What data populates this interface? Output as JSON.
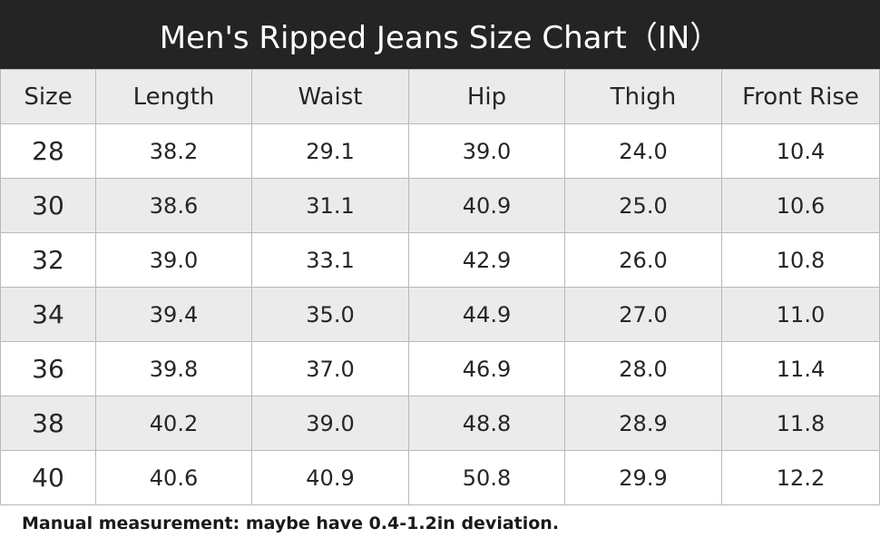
{
  "title": "Men's Ripped Jeans Size Chart（IN）",
  "table": {
    "headers": [
      "Size",
      "Length",
      "Waist",
      "Hip",
      "Thigh",
      "Front Rise"
    ],
    "rows": [
      [
        "28",
        "38.2",
        "29.1",
        "39.0",
        "24.0",
        "10.4"
      ],
      [
        "30",
        "38.6",
        "31.1",
        "40.9",
        "25.0",
        "10.6"
      ],
      [
        "32",
        "39.0",
        "33.1",
        "42.9",
        "26.0",
        "10.8"
      ],
      [
        "34",
        "39.4",
        "35.0",
        "44.9",
        "27.0",
        "11.0"
      ],
      [
        "36",
        "39.8",
        "37.0",
        "46.9",
        "28.0",
        "11.4"
      ],
      [
        "38",
        "40.2",
        "39.0",
        "48.8",
        "28.9",
        "11.8"
      ],
      [
        "40",
        "40.6",
        "40.9",
        "50.8",
        "29.9",
        "12.2"
      ]
    ]
  },
  "note": "Manual measurement: maybe have 0.4-1.2in deviation.",
  "colors": {
    "title_bar_bg": "#242424",
    "title_text": "#ffffff",
    "header_bg": "#ebebeb",
    "alt_row_bg": "#ebebeb",
    "grid_line": "#b9b9b9",
    "text": "#262626"
  }
}
